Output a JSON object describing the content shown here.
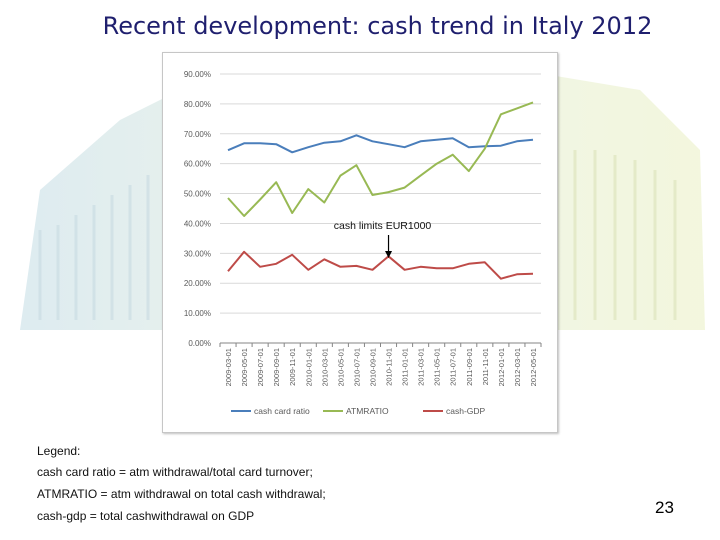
{
  "slide": {
    "title": "Recent development: cash trend in Italy 2012",
    "page_number": "23",
    "legend_notes": {
      "heading": "Legend:",
      "line1": "cash card ratio = atm withdrawal/total card turnover;",
      "line2": "ATMRATIO = atm withdrawal on total cash withdrawal;",
      "line3": "cash-gdp = total cashwithdrawal on GDP"
    }
  },
  "chart_data": {
    "type": "line",
    "title": "",
    "xlabel": "",
    "ylabel": "",
    "ylim": [
      0,
      90
    ],
    "y_ticks": [
      "0.00%",
      "10.00%",
      "20.00%",
      "30.00%",
      "40.00%",
      "50.00%",
      "60.00%",
      "70.00%",
      "80.00%",
      "90.00%"
    ],
    "y_tick_values": [
      0,
      10,
      20,
      30,
      40,
      50,
      60,
      70,
      80,
      90
    ],
    "categories": [
      "2009-03-01",
      "2009-05-01",
      "2009-07-01",
      "2009-09-01",
      "2009-11-01",
      "2010-01-01",
      "2010-03-01",
      "2010-05-01",
      "2010-07-01",
      "2010-09-01",
      "2010-11-01",
      "2011-01-01",
      "2011-03-01",
      "2011-05-01",
      "2011-07-01",
      "2011-09-01",
      "2011-11-01",
      "2012-01-01",
      "2012-03-01",
      "2012-05-01"
    ],
    "series": [
      {
        "name": "cash card ratio",
        "color": "#4a7ebb",
        "values": [
          64.5,
          66.8,
          66.8,
          66.5,
          63.8,
          65.5,
          67,
          67.5,
          69.5,
          67.5,
          66.5,
          65.5,
          67.5,
          68,
          68.5,
          65.5,
          65.8,
          66,
          67.5,
          68
        ]
      },
      {
        "name": "ATMRATIO",
        "color": "#98b954",
        "values": [
          48.5,
          42.5,
          48,
          53.8,
          43.5,
          51.5,
          47,
          56,
          59.5,
          49.5,
          50.5,
          52,
          56,
          60,
          63,
          57.5,
          65,
          76.5,
          78.5,
          80.5
        ]
      },
      {
        "name": "cash-GDP",
        "color": "#be4b48",
        "values": [
          24,
          30.5,
          25.5,
          26.5,
          29.5,
          24.5,
          28,
          25.5,
          25.8,
          24.5,
          29,
          24.5,
          25.5,
          25,
          25,
          26.5,
          27,
          21.5,
          23,
          23.2
        ]
      }
    ],
    "grid": true,
    "legend_position": "bottom",
    "annotation": {
      "text": "cash limits EUR1000",
      "target_index": 10
    }
  }
}
